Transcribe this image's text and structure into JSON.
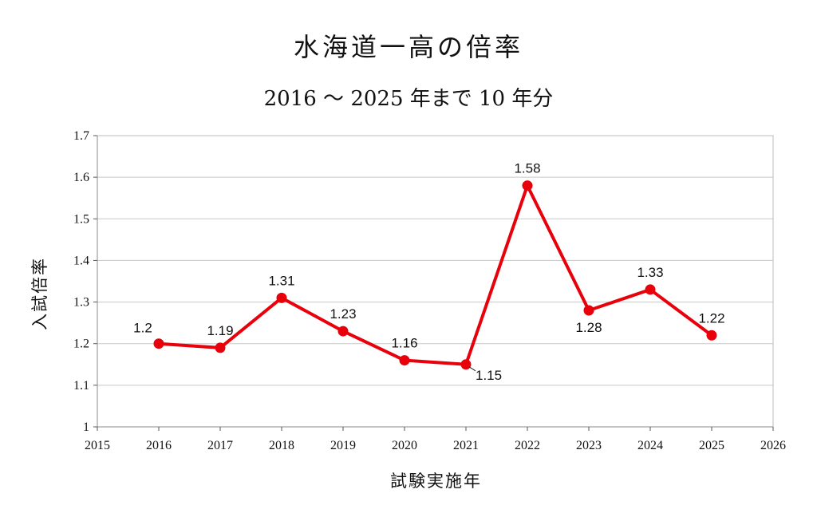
{
  "title": "水海道一高の倍率",
  "subtitle": "2016 ～ 2025 年まで 10 年分",
  "chart_data": {
    "type": "line",
    "title": "水海道一高の倍率",
    "subtitle": "2016 ～ 2025 年まで 10 年分",
    "xlabel": "試験実施年",
    "ylabel": "入試倍率",
    "x": [
      2016,
      2017,
      2018,
      2019,
      2020,
      2021,
      2022,
      2023,
      2024,
      2025
    ],
    "series": [
      {
        "name": "入試倍率",
        "values": [
          1.2,
          1.19,
          1.31,
          1.23,
          1.16,
          1.15,
          1.58,
          1.28,
          1.33,
          1.22
        ]
      }
    ],
    "data_labels": [
      "1.2",
      "1.19",
      "1.31",
      "1.23",
      "1.16",
      "1.15",
      "1.58",
      "1.28",
      "1.33",
      "1.22"
    ],
    "label_positions": [
      "above-left",
      "above",
      "above",
      "above",
      "above",
      "below-right",
      "above",
      "below",
      "above",
      "above"
    ],
    "xlim": [
      2015,
      2026
    ],
    "ylim": [
      1,
      1.7
    ],
    "x_ticks": [
      "2015",
      "2016",
      "2017",
      "2018",
      "2019",
      "2020",
      "2021",
      "2022",
      "2023",
      "2024",
      "2025",
      "2026"
    ],
    "y_ticks": [
      "1",
      "1.1",
      "1.2",
      "1.3",
      "1.4",
      "1.5",
      "1.6",
      "1.7"
    ],
    "grid": true,
    "line_color": "#e8000b",
    "grid_color": "#c8c8c8"
  }
}
